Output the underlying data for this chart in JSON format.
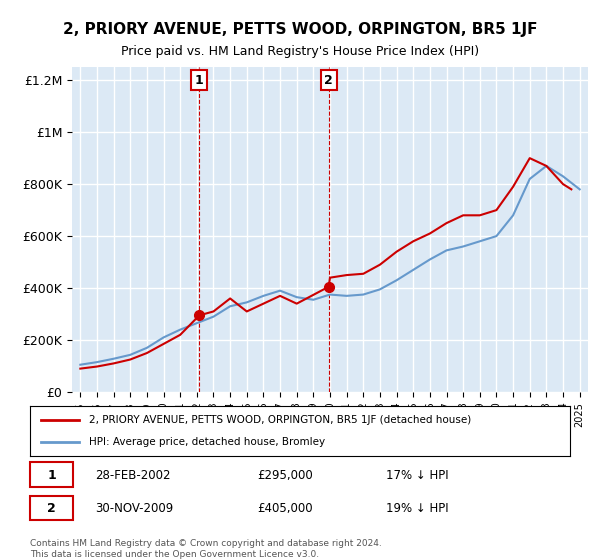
{
  "title": "2, PRIORY AVENUE, PETTS WOOD, ORPINGTON, BR5 1JF",
  "subtitle": "Price paid vs. HM Land Registry's House Price Index (HPI)",
  "red_label": "2, PRIORY AVENUE, PETTS WOOD, ORPINGTON, BR5 1JF (detached house)",
  "blue_label": "HPI: Average price, detached house, Bromley",
  "transaction1": {
    "label": "1",
    "date": "28-FEB-2002",
    "price": 295000,
    "note": "17% ↓ HPI",
    "year": 2002.15
  },
  "transaction2": {
    "label": "2",
    "date": "30-NOV-2009",
    "price": 405000,
    "note": "19% ↓ HPI",
    "year": 2009.92
  },
  "footer1": "Contains HM Land Registry data © Crown copyright and database right 2024.",
  "footer2": "This data is licensed under the Open Government Licence v3.0.",
  "ylim": [
    0,
    1250000
  ],
  "yticks": [
    0,
    200000,
    400000,
    600000,
    800000,
    1000000,
    1200000
  ],
  "ytick_labels": [
    "£0",
    "£200K",
    "£400K",
    "£600K",
    "£800K",
    "£1M",
    "£1.2M"
  ],
  "background_color": "#ffffff",
  "plot_bg_color": "#dce9f5",
  "grid_color": "#ffffff",
  "red_color": "#cc0000",
  "blue_color": "#6699cc",
  "hpi_years": [
    1995,
    1996,
    1997,
    1998,
    1999,
    2000,
    2001,
    2002,
    2003,
    2004,
    2005,
    2006,
    2007,
    2008,
    2009,
    2010,
    2011,
    2012,
    2013,
    2014,
    2015,
    2016,
    2017,
    2018,
    2019,
    2020,
    2021,
    2022,
    2023,
    2024,
    2025
  ],
  "hpi_values": [
    105000,
    115000,
    128000,
    143000,
    170000,
    210000,
    240000,
    265000,
    290000,
    330000,
    345000,
    370000,
    390000,
    365000,
    355000,
    375000,
    370000,
    375000,
    395000,
    430000,
    470000,
    510000,
    545000,
    560000,
    580000,
    600000,
    680000,
    820000,
    870000,
    830000,
    780000
  ],
  "red_years": [
    1995,
    1996,
    1997,
    1998,
    1999,
    2000,
    2001,
    2002.15,
    2003,
    2004,
    2005,
    2006,
    2007,
    2008,
    2009.92,
    2010,
    2011,
    2012,
    2013,
    2014,
    2015,
    2016,
    2017,
    2018,
    2019,
    2020,
    2021,
    2022,
    2023,
    2024.0,
    2024.5
  ],
  "red_values": [
    90000,
    98000,
    110000,
    125000,
    150000,
    185000,
    220000,
    295000,
    310000,
    360000,
    310000,
    340000,
    370000,
    340000,
    405000,
    440000,
    450000,
    455000,
    490000,
    540000,
    580000,
    610000,
    650000,
    680000,
    680000,
    700000,
    790000,
    900000,
    870000,
    800000,
    780000
  ]
}
